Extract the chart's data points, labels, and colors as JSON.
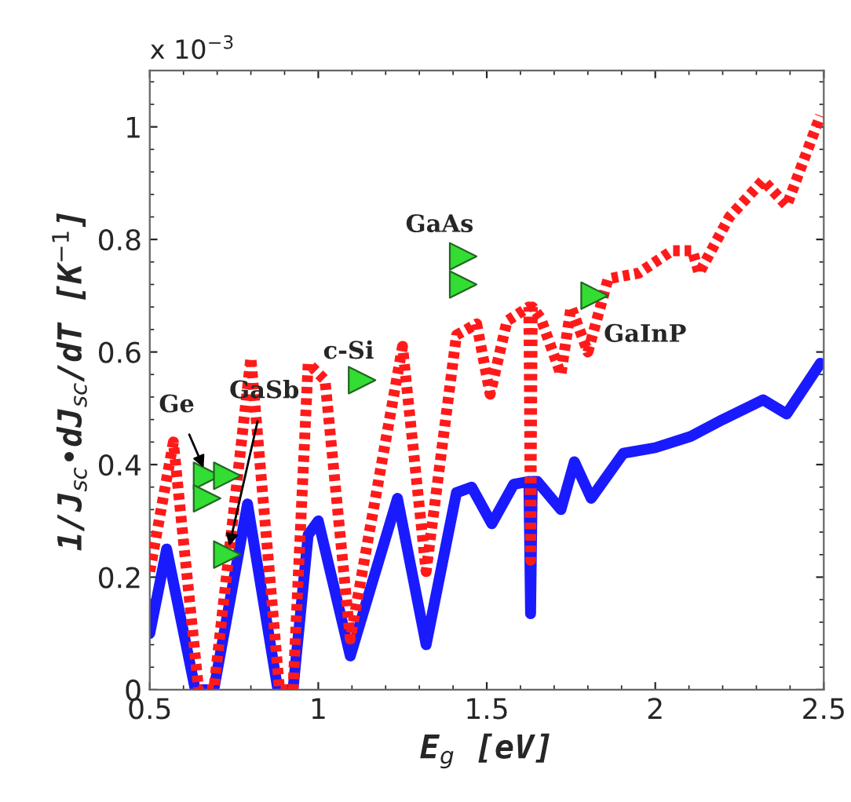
{
  "chart_data": {
    "type": "line",
    "xlabel": "E$_{g}$ [eV]",
    "ylabel": "1/J$_{sc}$•dJ$_{sc}$/dT [K$^{−1}$]",
    "xlim": [
      0.5,
      2.5
    ],
    "xticks": [
      0.5,
      1,
      1.5,
      2,
      2.5
    ],
    "ylim": [
      0,
      1.1
    ],
    "yticks": [
      0,
      0.2,
      0.4,
      0.6,
      0.8,
      1
    ],
    "grid": false,
    "legend": false,
    "series": [
      {
        "color": "#ff1a1a",
        "line_style": "dotted",
        "x": [
          0.5,
          0.57,
          0.645,
          0.69,
          0.8,
          0.885,
          0.925,
          0.97,
          1.02,
          1.095,
          1.25,
          1.32,
          1.41,
          1.47,
          1.51,
          1.56,
          1.625,
          1.63,
          1.635,
          1.66,
          1.72,
          1.75,
          1.8,
          1.86,
          1.95,
          2.05,
          2.11,
          2.13,
          2.22,
          2.32,
          2.39,
          2.49
        ],
        "values": [
          0.21,
          0.44,
          0.0,
          0.0,
          0.59,
          0.0,
          0.0,
          0.58,
          0.55,
          0.09,
          0.61,
          0.21,
          0.63,
          0.65,
          0.525,
          0.655,
          0.68,
          0.23,
          0.68,
          0.66,
          0.56,
          0.68,
          0.6,
          0.73,
          0.74,
          0.78,
          0.78,
          0.74,
          0.84,
          0.905,
          0.86,
          1.02
        ]
      },
      {
        "color": "#1a1aff",
        "line_style": "solid",
        "x": [
          0.5,
          0.55,
          0.635,
          0.69,
          0.79,
          0.88,
          0.925,
          0.97,
          1.0,
          1.095,
          1.235,
          1.32,
          1.41,
          1.455,
          1.515,
          1.58,
          1.625,
          1.63,
          1.635,
          1.65,
          1.72,
          1.76,
          1.81,
          1.905,
          2.0,
          2.105,
          2.2,
          2.32,
          2.39,
          2.49
        ],
        "values": [
          0.1,
          0.25,
          0.0,
          0.0,
          0.33,
          0.0,
          0.0,
          0.275,
          0.3,
          0.06,
          0.34,
          0.08,
          0.35,
          0.36,
          0.295,
          0.365,
          0.37,
          0.135,
          0.37,
          0.37,
          0.32,
          0.405,
          0.34,
          0.42,
          0.43,
          0.45,
          0.48,
          0.515,
          0.49,
          0.58
        ]
      },
      {
        "type": "scatter",
        "color": "#33dd33",
        "marker": "triangle",
        "x": [
          0.67,
          0.67,
          0.73,
          0.73,
          1.13,
          1.43,
          1.43,
          1.82
        ],
        "values": [
          0.38,
          0.34,
          0.38,
          0.24,
          0.55,
          0.77,
          0.72,
          0.7
        ]
      }
    ],
    "annotations": [
      "x 10$^{−3}$",
      {
        "text": "Ge",
        "x": 0.67,
        "y": 0.38
      },
      {
        "text": "GaSb",
        "x": 0.73,
        "y": 0.24
      },
      {
        "text": "c-Si",
        "x": 1.13,
        "y": 0.55
      },
      {
        "text": "GaAs",
        "x": 1.43,
        "y": 0.77
      },
      {
        "text": "GaInP",
        "x": 1.82,
        "y": 0.7
      }
    ]
  }
}
